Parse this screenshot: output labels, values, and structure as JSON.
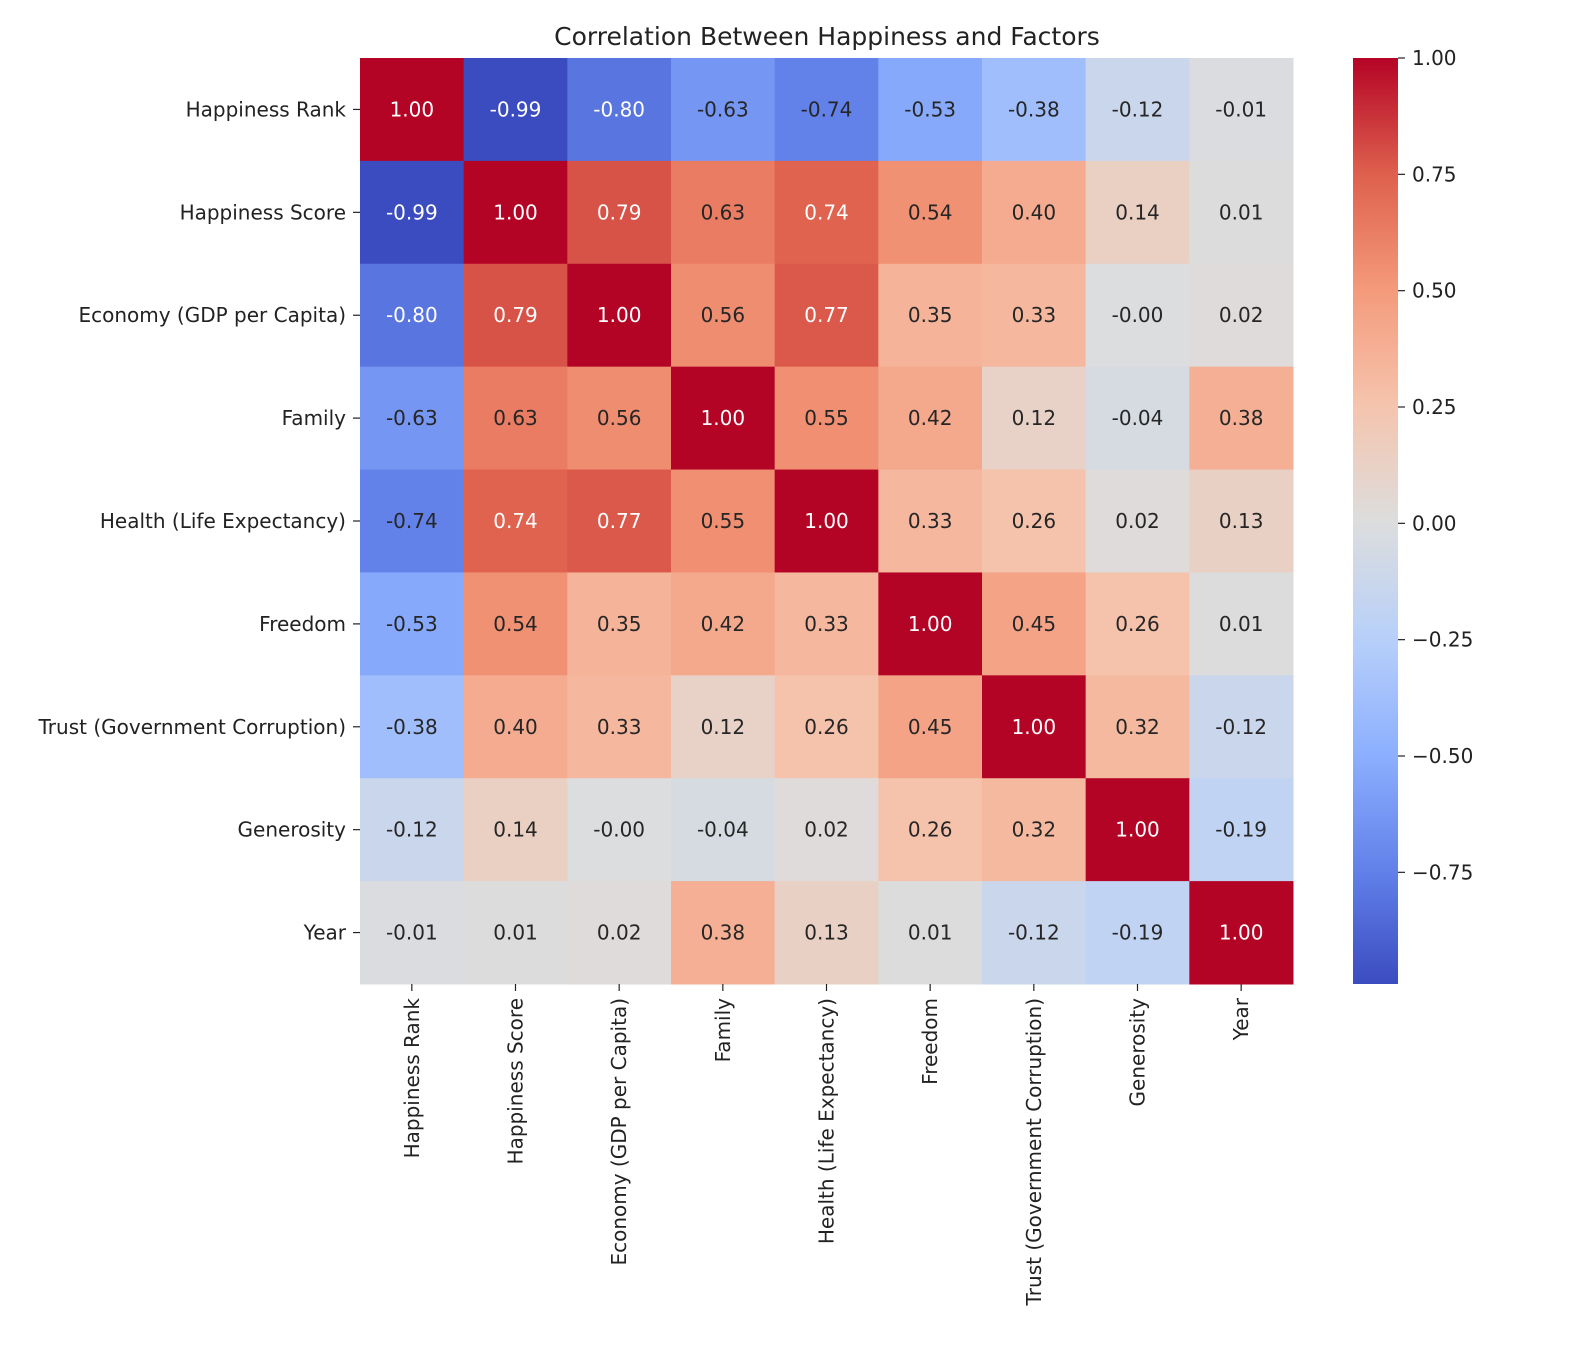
{
  "chart_data": {
    "type": "heatmap",
    "title": "Correlation Between Happiness and Factors",
    "colormap": "coolwarm",
    "vlim": [
      -0.99,
      1.0
    ],
    "annotation_format": "0.00",
    "x_labels": [
      "Happiness Rank",
      "Happiness Score",
      "Economy (GDP per Capita)",
      "Family",
      "Health (Life Expectancy)",
      "Freedom",
      "Trust (Government Corruption)",
      "Generosity",
      "Year"
    ],
    "y_labels": [
      "Happiness Rank",
      "Happiness Score",
      "Economy (GDP per Capita)",
      "Family",
      "Health (Life Expectancy)",
      "Freedom",
      "Trust (Government Corruption)",
      "Generosity",
      "Year"
    ],
    "values": [
      [
        1.0,
        -0.99,
        -0.8,
        -0.63,
        -0.74,
        -0.53,
        -0.38,
        -0.12,
        -0.01
      ],
      [
        -0.99,
        1.0,
        0.79,
        0.63,
        0.74,
        0.54,
        0.4,
        0.14,
        0.01
      ],
      [
        -0.8,
        0.79,
        1.0,
        0.56,
        0.77,
        0.35,
        0.33,
        -0.0,
        0.02
      ],
      [
        -0.63,
        0.63,
        0.56,
        1.0,
        0.55,
        0.42,
        0.12,
        -0.04,
        0.38
      ],
      [
        -0.74,
        0.74,
        0.77,
        0.55,
        1.0,
        0.33,
        0.26,
        0.02,
        0.13
      ],
      [
        -0.53,
        0.54,
        0.35,
        0.42,
        0.33,
        1.0,
        0.45,
        0.26,
        0.01
      ],
      [
        -0.38,
        0.4,
        0.33,
        0.12,
        0.26,
        0.45,
        1.0,
        0.32,
        -0.12
      ],
      [
        -0.12,
        0.14,
        -0.0,
        -0.04,
        0.02,
        0.26,
        0.32,
        1.0,
        -0.19
      ],
      [
        -0.01,
        0.01,
        0.02,
        0.38,
        0.13,
        0.01,
        -0.12,
        -0.19,
        1.0
      ]
    ],
    "colorbar": {
      "ticks": [
        1.0,
        0.75,
        0.5,
        0.25,
        0.0,
        -0.25,
        -0.5,
        -0.75
      ],
      "tick_labels": [
        "1.00",
        "0.75",
        "0.50",
        "0.25",
        "0.00",
        "−0.25",
        "−0.50",
        "−0.75"
      ]
    }
  }
}
